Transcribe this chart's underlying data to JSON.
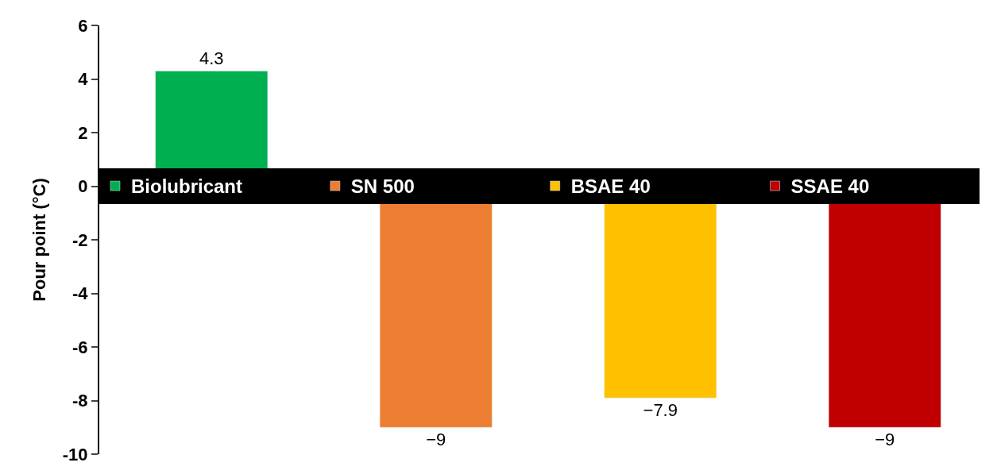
{
  "chart_data": {
    "type": "bar",
    "ylabel": "Pour point (°C)",
    "categories": [
      null,
      null,
      null,
      null
    ],
    "series": [
      {
        "name": "Biolubricant",
        "color": "#00b050",
        "values": [
          4.3,
          null,
          null,
          null
        ],
        "value_labels": [
          "4.3",
          null,
          null,
          null
        ]
      },
      {
        "name": "SN 500",
        "color": "#ed7d31",
        "values": [
          null,
          -9,
          null,
          null
        ],
        "value_labels": [
          null,
          "−9",
          null,
          null
        ]
      },
      {
        "name": "BSAE 40",
        "color": "#ffc000",
        "values": [
          null,
          null,
          -7.9,
          null
        ],
        "value_labels": [
          null,
          null,
          "−7.9",
          null
        ]
      },
      {
        "name": "SSAE 40",
        "color": "#c00000",
        "values": [
          null,
          null,
          null,
          -9
        ],
        "value_labels": [
          null,
          null,
          null,
          "−9"
        ]
      }
    ],
    "stacked": true,
    "ylim": [
      -10,
      6
    ],
    "yticks": [
      -10,
      -8,
      -6,
      -4,
      -2,
      0,
      2,
      4,
      6
    ],
    "legend": "center",
    "tick_labels": "y"
  }
}
